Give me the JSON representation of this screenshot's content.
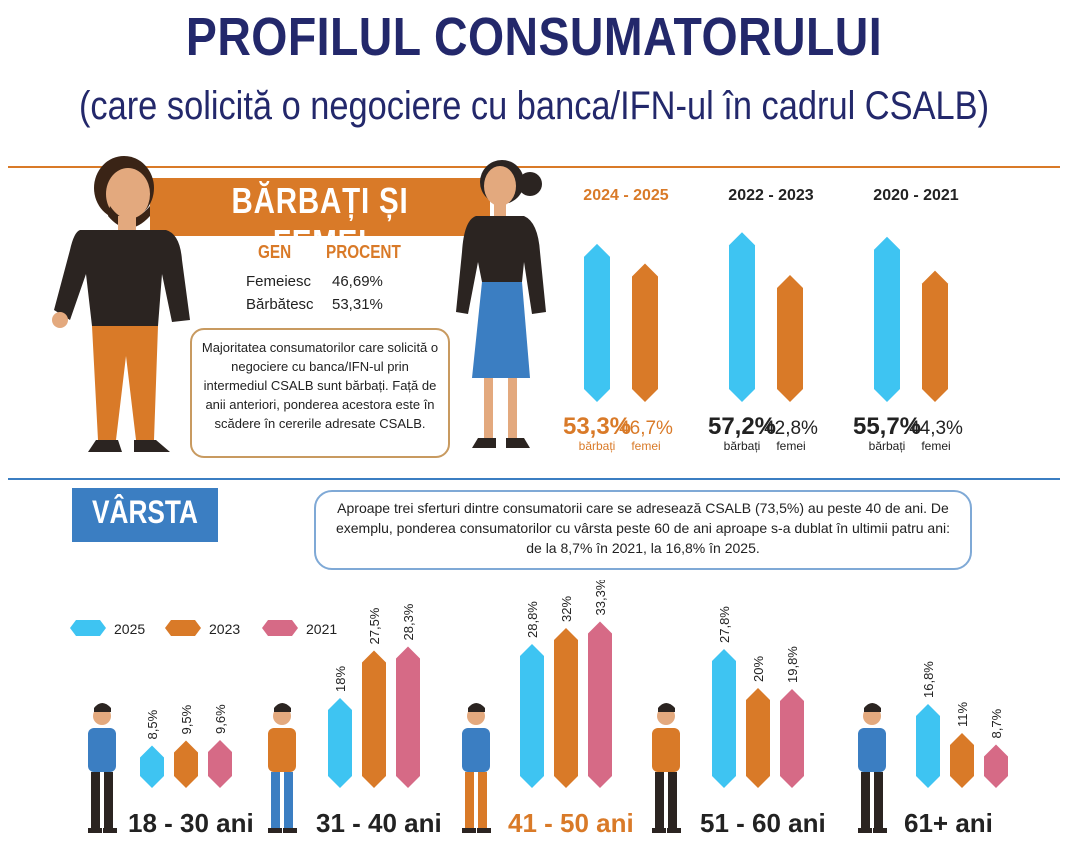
{
  "header": {
    "title": "PROFILUL CONSUMATORULUI",
    "subtitle": "(care solicită o negociere cu banca/IFN-ul în cadrul CSALB)"
  },
  "gender": {
    "banner": "BĂRBAȚI ȘI FEMEI",
    "table_headers": [
      "GEN",
      "PROCENT"
    ],
    "table_rows": [
      {
        "gen": "Femeiesc",
        "procent": "46,69%"
      },
      {
        "gen": "Bărbătesc",
        "procent": "53,31%"
      }
    ],
    "note": "Majoritatea consumatorilor care solicită o negociere cu banca/IFN-ul prin intermediul CSALB sunt bărbați. Față de anii anteriori, ponderea acestora este în scădere în cererile adresate CSALB."
  },
  "age": {
    "banner": "VÂRSTA",
    "note": "Aproape trei sferturi dintre consumatorii care se adresează CSALB (73,5%) au peste 40 de ani. De exemplu, ponderea consumatorilor cu vârsta peste 60 de ani aproape s-a dublat în ultimii patru ani: de la 8,7% în 2021, la 16,8% în 2025."
  },
  "colors": {
    "title": "#23286b",
    "orange": "#d97a28",
    "blue": "#3b7ec2",
    "cyan": "#3ec4f2",
    "pink": "#d66a86"
  },
  "chart_data": [
    {
      "type": "bar",
      "categories": [
        "2024 - 2025",
        "2022 - 2023",
        "2020 - 2021"
      ],
      "series": [
        {
          "name": "bărbați",
          "values": [
            53.3,
            57.2,
            55.7
          ],
          "labels": [
            "53,3%",
            "57,2%",
            "55,7%"
          ]
        },
        {
          "name": "femei",
          "values": [
            46.7,
            42.8,
            44.3
          ],
          "labels": [
            "46,7%",
            "42,8%",
            "44,3%"
          ]
        }
      ],
      "ylim": [
        0,
        60
      ]
    },
    {
      "type": "bar",
      "categories": [
        "18 - 30 ani",
        "31 - 40 ani",
        "41 - 50 ani",
        "51 - 60 ani",
        "61+ ani"
      ],
      "series": [
        {
          "name": "2025",
          "values": [
            8.5,
            18,
            28.8,
            27.8,
            16.8
          ],
          "labels": [
            "8,5%",
            "18%",
            "28,8%",
            "27,8%",
            "16,8%"
          ]
        },
        {
          "name": "2023",
          "values": [
            9.5,
            27.5,
            32,
            20,
            11
          ],
          "labels": [
            "9,5%",
            "27,5%",
            "32%",
            "20%",
            "11%"
          ]
        },
        {
          "name": "2021",
          "values": [
            9.6,
            28.3,
            33.3,
            19.8,
            8.7
          ],
          "labels": [
            "9,6%",
            "28,3%",
            "33,3%",
            "19,8%",
            "8,7%"
          ]
        }
      ],
      "ylim": [
        0,
        34
      ]
    }
  ]
}
